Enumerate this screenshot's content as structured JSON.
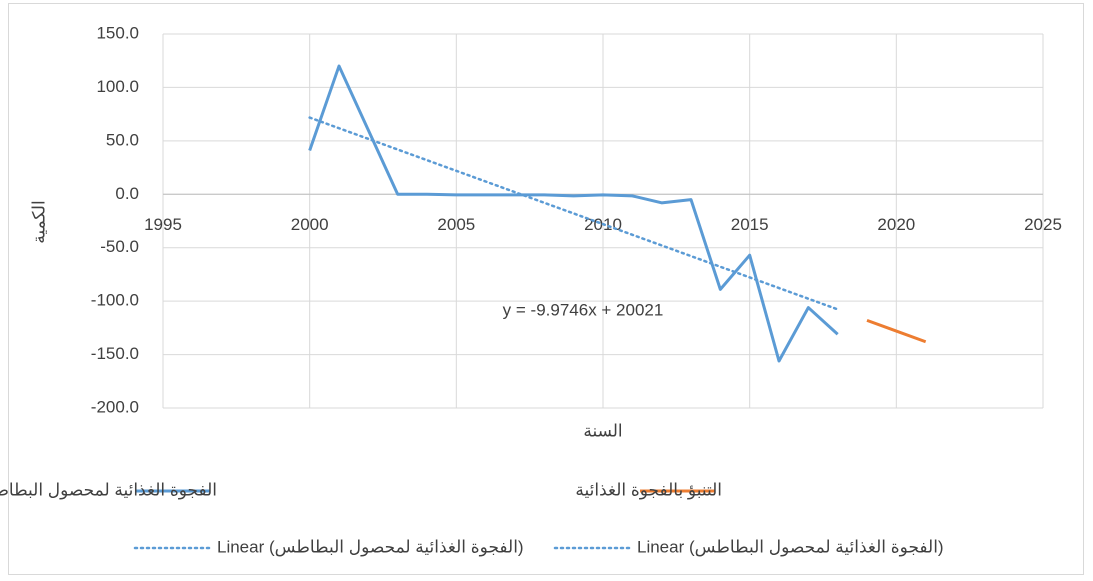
{
  "chart_data": {
    "type": "line",
    "x_label": "السنة",
    "y_label": "الكمية",
    "xlim": [
      1995,
      2025
    ],
    "xticks": [
      1995,
      2000,
      2005,
      2010,
      2015,
      2020,
      2025
    ],
    "ylim": [
      -200,
      150
    ],
    "yticks": [
      {
        "value": 150,
        "label": "150.0"
      },
      {
        "value": 100,
        "label": "100.0"
      },
      {
        "value": 50,
        "label": "50.0"
      },
      {
        "value": 0,
        "label": "0.0"
      },
      {
        "value": -50,
        "label": "-50.0"
      },
      {
        "value": -100,
        "label": "-100.0"
      },
      {
        "value": -150,
        "label": "-150.0"
      },
      {
        "value": -200,
        "label": "-200.0"
      }
    ],
    "grid": true,
    "series": [
      {
        "name": "الفجوة الغذائية لمحصول البطاطس",
        "color": "#5b9bd5",
        "x": [
          2000,
          2001,
          2002,
          2003,
          2004,
          2005,
          2006,
          2007,
          2008,
          2009,
          2010,
          2011,
          2012,
          2013,
          2014,
          2015,
          2016,
          2017,
          2018
        ],
        "values": [
          41,
          120,
          60,
          0,
          0,
          -0.5,
          -0.5,
          -0.5,
          -0.5,
          -1.5,
          -0.5,
          -1.5,
          -8,
          -5,
          -89,
          -57,
          -156,
          -106,
          -131
        ]
      },
      {
        "name": "التنبؤ بالفجوة الغذائية",
        "color": "#ed7d31",
        "x": [
          2019,
          2020,
          2021
        ],
        "values": [
          -118,
          -128,
          -138
        ]
      }
    ],
    "trendlines": [
      {
        "name": "Linear (الفجوة الغذائية لمحصول البطاطس)",
        "color": "#5b9bd5",
        "equation": "y = -9.9746x + 20021",
        "x": [
          2000,
          2018
        ],
        "values": [
          71.8,
          -107.7
        ]
      },
      {
        "name": "Linear (الفجوة الغذائية لمحصول البطاطس)",
        "color": "#5b9bd5"
      }
    ]
  }
}
